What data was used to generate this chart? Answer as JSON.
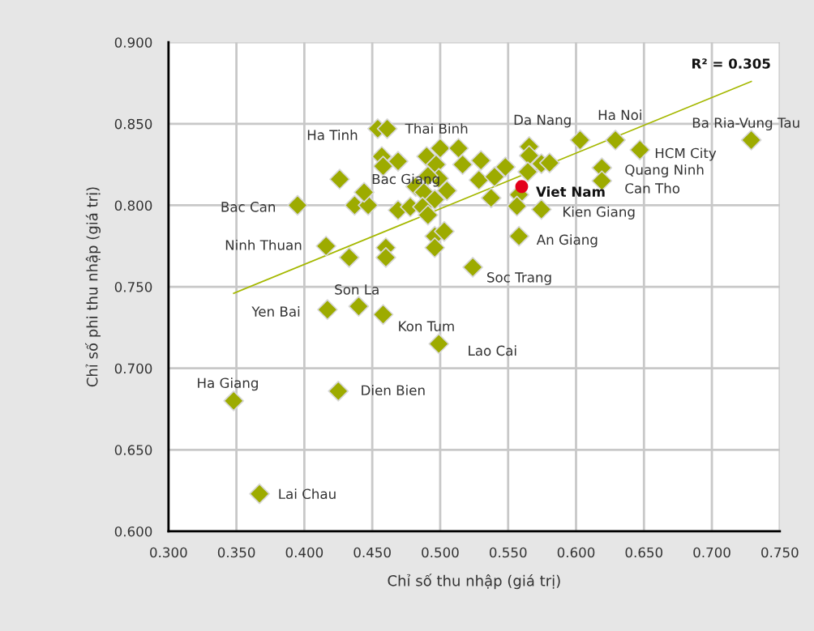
{
  "chart_data": {
    "type": "scatter",
    "xlabel": "Chỉ số thu nhập (giá trị)",
    "ylabel": "Chỉ số phi thu nhập (giá trị)",
    "xlim": [
      0.3,
      0.75
    ],
    "ylim": [
      0.6,
      0.9
    ],
    "xticks": [
      {
        "value": 0.3,
        "label": "0.300"
      },
      {
        "value": 0.35,
        "label": "0.350"
      },
      {
        "value": 0.4,
        "label": "0.400"
      },
      {
        "value": 0.45,
        "label": "0.450"
      },
      {
        "value": 0.5,
        "label": "0.500"
      },
      {
        "value": 0.55,
        "label": "0.550"
      },
      {
        "value": 0.6,
        "label": "0.600"
      },
      {
        "value": 0.65,
        "label": "0.650"
      },
      {
        "value": 0.7,
        "label": "0.700"
      },
      {
        "value": 0.75,
        "label": "0.750"
      }
    ],
    "yticks": [
      {
        "value": 0.6,
        "label": "0.600"
      },
      {
        "value": 0.65,
        "label": "0.650"
      },
      {
        "value": 0.7,
        "label": "0.700"
      },
      {
        "value": 0.75,
        "label": "0.750"
      },
      {
        "value": 0.8,
        "label": "0.800"
      },
      {
        "value": 0.85,
        "label": "0.850"
      },
      {
        "value": 0.9,
        "label": "0.900"
      }
    ],
    "grid": true,
    "marker": "diamond",
    "series": [
      {
        "color": "#9dab00",
        "x": [
          0.348,
          0.367,
          0.425,
          0.417,
          0.44,
          0.458,
          0.499,
          0.524,
          0.416,
          0.433,
          0.46,
          0.46,
          0.395,
          0.437,
          0.447,
          0.469,
          0.454,
          0.461,
          0.457,
          0.458,
          0.469,
          0.426,
          0.444,
          0.49,
          0.497,
          0.5,
          0.499,
          0.491,
          0.482,
          0.488,
          0.496,
          0.505,
          0.478,
          0.487,
          0.491,
          0.496,
          0.503,
          0.496,
          0.5135,
          0.5165,
          0.53,
          0.5285,
          0.54,
          0.548,
          0.5375,
          0.5655,
          0.5655,
          0.5745,
          0.5805,
          0.5645,
          0.558,
          0.5565,
          0.5745,
          0.558,
          0.603,
          0.629,
          0.647,
          0.619,
          0.619,
          0.729
        ],
        "values": [
          0.68,
          0.623,
          0.686,
          0.736,
          0.738,
          0.733,
          0.715,
          0.762,
          0.775,
          0.768,
          0.774,
          0.768,
          0.8,
          0.8,
          0.8,
          0.797,
          0.847,
          0.847,
          0.83,
          0.824,
          0.827,
          0.816,
          0.808,
          0.83,
          0.825,
          0.835,
          0.8165,
          0.818,
          0.8115,
          0.808,
          0.8035,
          0.809,
          0.799,
          0.799,
          0.794,
          0.781,
          0.784,
          0.774,
          0.835,
          0.825,
          0.8275,
          0.8155,
          0.8175,
          0.8235,
          0.8045,
          0.836,
          0.8305,
          0.8255,
          0.826,
          0.8205,
          0.8065,
          0.7995,
          0.7975,
          0.781,
          0.84,
          0.84,
          0.834,
          0.823,
          0.815,
          0.84
        ]
      },
      {
        "color": "#e3001b",
        "marker": "circle",
        "x": [
          0.56
        ],
        "values": [
          0.8115
        ]
      },
      {
        "type": "line",
        "color": "#a5b800",
        "marker": "none",
        "x": [
          0.348,
          0.729
        ],
        "values": [
          0.746,
          0.876
        ]
      }
    ],
    "annotations": [
      "R² = 0.305",
      "Ha Tinh",
      "Thai Binh",
      "Da Nang",
      "Ha Noi",
      "Ba Ria-Vung Tau",
      "HCM City",
      "Quang Ninh",
      "Can Tho",
      "Viet Nam",
      "Kien Giang",
      "An Giang",
      "Soc Trang",
      "Bac Giang",
      "Bac Can",
      "Ninh Thuan",
      "Son La",
      "Yen Bai",
      "Kon Tum",
      "Lao Cai",
      "Ha Giang",
      "Dien Bien",
      "Lai Chau"
    ]
  }
}
